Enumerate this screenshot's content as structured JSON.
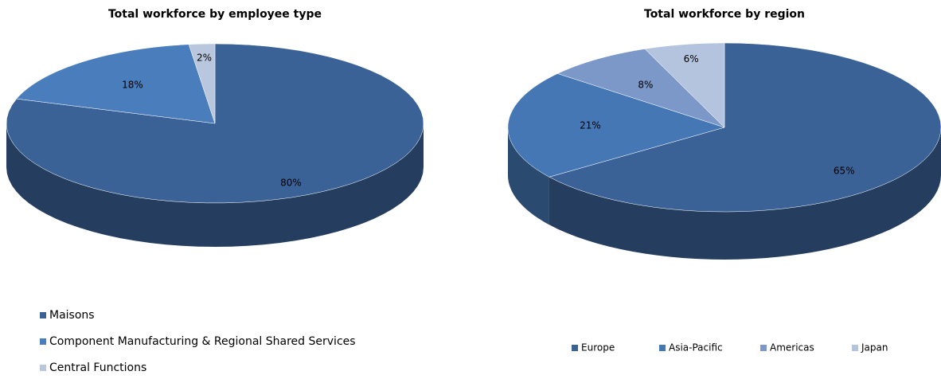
{
  "chart_data": [
    {
      "type": "pie3d",
      "title": "Total workforce by employee type",
      "categories": [
        "Maisons",
        "Component Manufacturing  & Regional Shared Services",
        "Central Functions"
      ],
      "values": [
        80,
        18,
        2
      ],
      "value_labels": [
        "80%",
        "18%",
        "2%"
      ],
      "colors": [
        "#3b6297",
        "#4a7dbb",
        "#b9c7de"
      ],
      "legend": "bottom-left-vertical"
    },
    {
      "type": "pie3d",
      "title": "Total workforce by region",
      "categories": [
        "Europe",
        "Asia-Pacific",
        "Americas",
        "Japan"
      ],
      "values": [
        65,
        21,
        8,
        6
      ],
      "value_labels": [
        "65%",
        "21%",
        "8%",
        "6%"
      ],
      "colors": [
        "#3b6297",
        "#4677b5",
        "#7b98c8",
        "#b4c3de"
      ],
      "legend": "bottom-horizontal"
    }
  ]
}
